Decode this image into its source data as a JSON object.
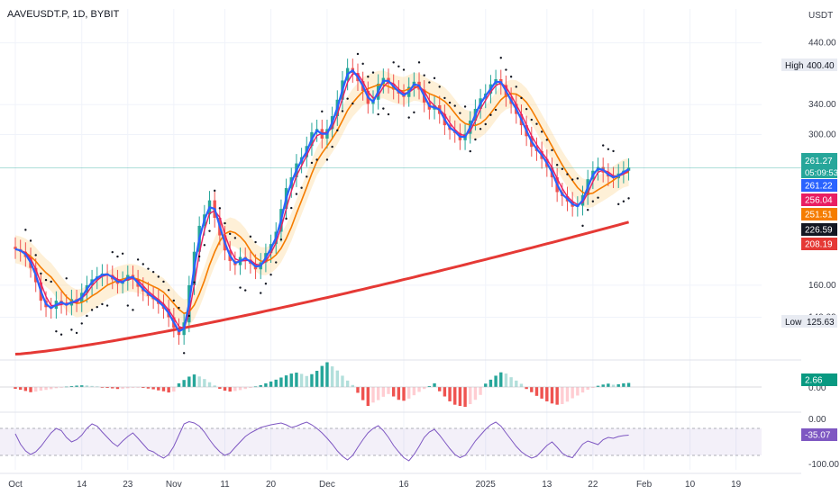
{
  "title": "AAVEUSDT.P, 1D, BYBIT",
  "currency": "USDT",
  "colors": {
    "up": "#26a69a",
    "down": "#ef5350",
    "ma_fast": "#2962ff",
    "ma_mid": "#e91e63",
    "ma_slow": "#f57c00",
    "ma_long": "#e53935",
    "rsi": "#7e57c2",
    "band": "#fbd38d"
  },
  "chart_data": [
    {
      "type": "candlestick",
      "title": "AAVEUSDT.P, 1D, BYBIT",
      "y_axis_ticks": [
        {
          "value": 440,
          "label": "440.00"
        },
        {
          "value": 340,
          "label": "340.00"
        },
        {
          "value": 300,
          "label": "300.00"
        },
        {
          "value": 160,
          "label": "160.00"
        },
        {
          "value": 140,
          "label": "140.00"
        }
      ],
      "ylim": [
        118,
        470
      ],
      "y_scale": "log",
      "x_axis_ticks": [
        {
          "label": "Oct",
          "day": 0
        },
        {
          "label": "14",
          "day": 13
        },
        {
          "label": "23",
          "day": 22
        },
        {
          "label": "Nov",
          "day": 31
        },
        {
          "label": "11",
          "day": 41
        },
        {
          "label": "20",
          "day": 50
        },
        {
          "label": "Dec",
          "day": 61
        },
        {
          "label": "16",
          "day": 76
        },
        {
          "label": "2025",
          "day": 92
        },
        {
          "label": "13",
          "day": 104
        },
        {
          "label": "22",
          "day": 113
        },
        {
          "label": "Feb",
          "day": 123
        },
        {
          "label": "10",
          "day": 132
        },
        {
          "label": "19",
          "day": 141
        }
      ],
      "x_range_days": [
        -3,
        146
      ],
      "close": [
        186,
        184,
        180,
        172,
        162,
        150,
        146,
        145,
        150,
        148,
        147,
        151,
        149,
        155,
        160,
        164,
        166,
        168,
        167,
        164,
        161,
        163,
        167,
        164,
        159,
        156,
        153,
        151,
        148,
        145,
        140,
        134,
        130,
        137,
        160,
        184,
        205,
        215,
        228,
        212,
        197,
        185,
        177,
        174,
        180,
        178,
        175,
        171,
        176,
        183,
        190,
        200,
        220,
        240,
        251,
        266,
        273,
        286,
        303,
        307,
        295,
        307,
        324,
        347,
        376,
        396,
        388,
        375,
        360,
        341,
        347,
        371,
        380,
        371,
        362,
        356,
        351,
        366,
        374,
        362,
        343,
        333,
        339,
        327,
        312,
        306,
        302,
        293,
        301,
        318,
        334,
        349,
        356,
        370,
        378,
        369,
        351,
        341,
        327,
        312,
        298,
        285,
        280,
        271,
        262,
        251,
        236,
        232,
        227,
        222,
        223,
        233,
        249,
        258,
        262,
        256,
        252,
        250,
        255,
        258,
        261.27
      ],
      "band_lower_upper_note": "shaded band around the orange moving average",
      "moving_averages": [
        {
          "value_label": "261.22",
          "color": "#2962ff"
        },
        {
          "value_label": "256.04",
          "color": "#e91e63"
        },
        {
          "value_label": "251.51",
          "color": "#f57c00"
        },
        {
          "value_label": "208.19",
          "color": "#e53935"
        }
      ],
      "last_price_label": "261.27",
      "countdown_label": "05:09:53",
      "dark_label": "226.59",
      "high": {
        "label": "High",
        "value": "400.40"
      },
      "low": {
        "label": "Low",
        "value": "125.63"
      }
    },
    {
      "type": "bar",
      "title": "MACD histogram",
      "value_label": "2.66",
      "zero_label": "0.00",
      "values": [
        -1.2,
        -1.8,
        -2.6,
        -3.4,
        -3.0,
        -2.4,
        -1.9,
        -1.4,
        -0.8,
        -0.4,
        0.3,
        0.6,
        0.9,
        1.1,
        1.0,
        0.7,
        0.4,
        -0.2,
        -0.6,
        -0.9,
        -1.3,
        -1.1,
        -0.8,
        -0.5,
        -0.3,
        -0.6,
        -1.0,
        -1.5,
        -2.2,
        -2.8,
        -3.6,
        -3.0,
        2.4,
        4.6,
        6.8,
        8.2,
        6.9,
        5.2,
        3.1,
        1.0,
        -1.2,
        -2.4,
        -3.0,
        -2.6,
        -2.0,
        -1.3,
        -0.6,
        0.4,
        1.2,
        2.4,
        3.6,
        4.8,
        6.2,
        7.6,
        8.8,
        9.4,
        8.6,
        7.2,
        8.4,
        10.6,
        13.8,
        16.2,
        13.5,
        10.8,
        7.4,
        4.2,
        1.3,
        -3.8,
        -8.6,
        -12.4,
        -10.2,
        -8.6,
        -6.4,
        -4.6,
        -6.2,
        -8.4,
        -9.0,
        -7.6,
        -5.4,
        -3.2,
        -1.3,
        0.6,
        2.4,
        -2.8,
        -6.2,
        -9.4,
        -11.6,
        -12.4,
        -13.0,
        -11.2,
        -8.4,
        -5.2,
        2.2,
        4.8,
        7.4,
        9.6,
        8.8,
        6.4,
        4.2,
        2.1,
        -1.3,
        -3.4,
        -5.8,
        -7.6,
        -9.4,
        -10.8,
        -11.6,
        -11.2,
        -9.6,
        -7.4,
        -5.6,
        -3.6,
        -1.8,
        -0.6,
        0.8,
        1.6,
        2.2,
        1.5,
        1.8,
        2.4,
        2.66
      ]
    },
    {
      "type": "line",
      "title": "RSI",
      "y_axis_ticks": [
        {
          "value": 0,
          "label": "0.00"
        },
        {
          "value": -100,
          "label": "-100.00"
        }
      ],
      "ylim": [
        -112,
        12
      ],
      "band": [
        -80,
        -20
      ],
      "value_label": "-35.07",
      "values": [
        -32,
        -55,
        -70,
        -78,
        -72,
        -60,
        -45,
        -30,
        -20,
        -25,
        -40,
        -50,
        -45,
        -35,
        -20,
        -10,
        -15,
        -28,
        -40,
        -52,
        -60,
        -48,
        -38,
        -30,
        -42,
        -55,
        -68,
        -72,
        -80,
        -86,
        -78,
        -60,
        -35,
        -10,
        -5,
        -8,
        -15,
        -28,
        -45,
        -60,
        -72,
        -80,
        -75,
        -62,
        -50,
        -38,
        -30,
        -24,
        -18,
        -15,
        -12,
        -10,
        -8,
        -12,
        -18,
        -15,
        -10,
        -6,
        -12,
        -20,
        -30,
        -42,
        -55,
        -70,
        -82,
        -90,
        -80,
        -62,
        -45,
        -30,
        -20,
        -14,
        -25,
        -40,
        -58,
        -72,
        -85,
        -92,
        -78,
        -60,
        -40,
        -28,
        -22,
        -35,
        -50,
        -65,
        -78,
        -85,
        -80,
        -65,
        -48,
        -35,
        -22,
        -12,
        -6,
        -15,
        -30,
        -45,
        -60,
        -72,
        -80,
        -86,
        -82,
        -70,
        -58,
        -50,
        -62,
        -75,
        -82,
        -85,
        -70,
        -55,
        -48,
        -52,
        -56,
        -45,
        -40,
        -42,
        -38,
        -36,
        -35.07
      ]
    }
  ]
}
